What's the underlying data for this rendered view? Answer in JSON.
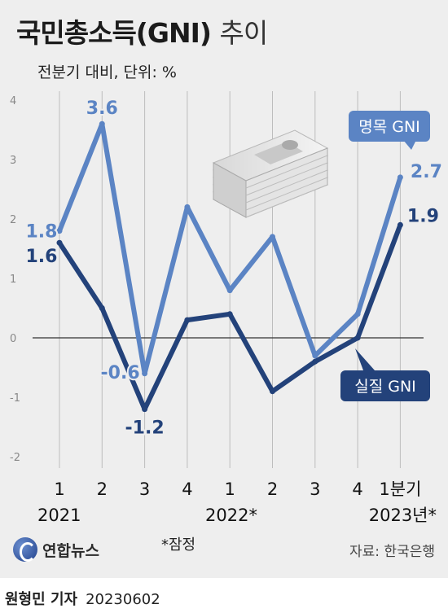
{
  "title": "국민총소득(GNI)",
  "title_suffix": "추이",
  "subtitle": "전분기 대비, 단위: %",
  "note": "*잠정",
  "source": "자료: 한국은행",
  "logo_text": "연합뉴스",
  "byline_name": "원형민 기자",
  "byline_date": "20230602",
  "colors": {
    "nominal": "#5b84c4",
    "real": "#23427a",
    "background": "#eeeeee"
  },
  "chart_data": {
    "type": "line",
    "categories": [
      "1",
      "2",
      "3",
      "4",
      "1",
      "2",
      "3",
      "4",
      "1분기"
    ],
    "year_labels": [
      "2021",
      "2022*",
      "2023년*"
    ],
    "ylim": [
      -2,
      4
    ],
    "yticks": [
      -2,
      -1,
      0,
      1,
      2,
      3,
      4
    ],
    "grid": "vertical",
    "series": [
      {
        "name": "명목 GNI",
        "values": [
          1.8,
          3.6,
          -0.6,
          2.2,
          0.8,
          1.7,
          -0.3,
          0.4,
          2.7
        ],
        "color": "#5b84c4"
      },
      {
        "name": "실질 GNI",
        "values": [
          1.6,
          0.5,
          -1.2,
          0.3,
          0.4,
          -0.9,
          -0.4,
          0.0,
          1.9
        ],
        "color": "#23427a"
      }
    ],
    "data_labels": [
      {
        "series": 0,
        "index": 0,
        "text": "1.8"
      },
      {
        "series": 0,
        "index": 1,
        "text": "3.6"
      },
      {
        "series": 0,
        "index": 2,
        "text": "-0.6"
      },
      {
        "series": 0,
        "index": 8,
        "text": "2.7"
      },
      {
        "series": 1,
        "index": 0,
        "text": "1.6"
      },
      {
        "series": 1,
        "index": 2,
        "text": "-1.2"
      },
      {
        "series": 1,
        "index": 8,
        "text": "1.9"
      }
    ]
  }
}
